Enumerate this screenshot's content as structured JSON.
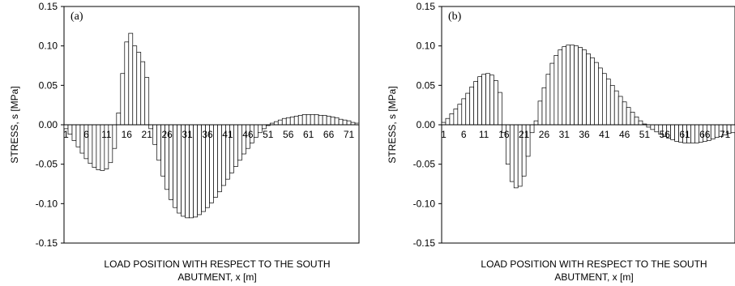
{
  "chart_data": [
    {
      "type": "bar",
      "panel_label": "(a)",
      "xlabel_line1": "LOAD POSITION WITH RESPECT TO THE SOUTH",
      "xlabel_line2": "ABUTMENT, x [m]",
      "ylabel": "STRESS, s [MPa]",
      "ylim": [
        -0.15,
        0.15
      ],
      "yticks": [
        "0.15",
        "0.10",
        "0.05",
        "0.00",
        "-0.05",
        "-0.10",
        "-0.15"
      ],
      "ytick_values": [
        0.15,
        0.1,
        0.05,
        0.0,
        -0.05,
        -0.1,
        -0.15
      ],
      "xtick_labels": [
        "1",
        "6",
        "11",
        "16",
        "21",
        "26",
        "31",
        "36",
        "41",
        "46",
        "51",
        "56",
        "61",
        "66",
        "71"
      ],
      "x": [
        1,
        2,
        3,
        4,
        5,
        6,
        7,
        8,
        9,
        10,
        11,
        12,
        13,
        14,
        15,
        16,
        17,
        18,
        19,
        20,
        21,
        22,
        23,
        24,
        25,
        26,
        27,
        28,
        29,
        30,
        31,
        32,
        33,
        34,
        35,
        36,
        37,
        38,
        39,
        40,
        41,
        42,
        43,
        44,
        45,
        46,
        47,
        48,
        49,
        50,
        51,
        52,
        53,
        54,
        55,
        56,
        57,
        58,
        59,
        60,
        61,
        62,
        63,
        64,
        65,
        66,
        67,
        68,
        69,
        70,
        71,
        72,
        73
      ],
      "values": [
        -0.005,
        -0.012,
        -0.02,
        -0.028,
        -0.036,
        -0.043,
        -0.049,
        -0.054,
        -0.057,
        -0.058,
        -0.056,
        -0.048,
        -0.03,
        0.015,
        0.065,
        0.105,
        0.116,
        0.1,
        0.092,
        0.08,
        0.06,
        -0.005,
        -0.025,
        -0.045,
        -0.065,
        -0.082,
        -0.095,
        -0.105,
        -0.112,
        -0.116,
        -0.118,
        -0.118,
        -0.117,
        -0.114,
        -0.11,
        -0.105,
        -0.099,
        -0.092,
        -0.085,
        -0.077,
        -0.069,
        -0.061,
        -0.053,
        -0.045,
        -0.037,
        -0.03,
        -0.023,
        -0.016,
        -0.01,
        -0.005,
        -0.001,
        0.002,
        0.004,
        0.006,
        0.008,
        0.009,
        0.01,
        0.011,
        0.012,
        0.013,
        0.013,
        0.013,
        0.013,
        0.012,
        0.012,
        0.011,
        0.01,
        0.009,
        0.007,
        0.006,
        0.005,
        0.003,
        0.002
      ],
      "grid": false,
      "legend": "none"
    },
    {
      "type": "bar",
      "panel_label": "(b)",
      "xlabel_line1": "LOAD POSITION WITH RESPECT TO THE SOUTH",
      "xlabel_line2": "ABUTMENT, x [m]",
      "ylabel": "STRESS, s [MPa]",
      "ylim": [
        -0.15,
        0.15
      ],
      "yticks": [
        "0.15",
        "0.10",
        "0.05",
        "0.00",
        "-0.05",
        "-0.10",
        "-0.15"
      ],
      "ytick_values": [
        0.15,
        0.1,
        0.05,
        0.0,
        -0.05,
        -0.1,
        -0.15
      ],
      "xtick_labels": [
        "1",
        "6",
        "11",
        "16",
        "21",
        "26",
        "31",
        "36",
        "41",
        "46",
        "51",
        "56",
        "61",
        "66",
        "71"
      ],
      "x": [
        1,
        2,
        3,
        4,
        5,
        6,
        7,
        8,
        9,
        10,
        11,
        12,
        13,
        14,
        15,
        16,
        17,
        18,
        19,
        20,
        21,
        22,
        23,
        24,
        25,
        26,
        27,
        28,
        29,
        30,
        31,
        32,
        33,
        34,
        35,
        36,
        37,
        38,
        39,
        40,
        41,
        42,
        43,
        44,
        45,
        46,
        47,
        48,
        49,
        50,
        51,
        52,
        53,
        54,
        55,
        56,
        57,
        58,
        59,
        60,
        61,
        62,
        63,
        64,
        65,
        66,
        67,
        68,
        69,
        70,
        71,
        72,
        73
      ],
      "values": [
        0.003,
        0.008,
        0.014,
        0.02,
        0.026,
        0.033,
        0.04,
        0.048,
        0.055,
        0.061,
        0.064,
        0.065,
        0.063,
        0.056,
        0.041,
        -0.01,
        -0.05,
        -0.072,
        -0.08,
        -0.078,
        -0.065,
        -0.04,
        -0.01,
        0.005,
        0.03,
        0.047,
        0.064,
        0.078,
        0.088,
        0.095,
        0.099,
        0.101,
        0.101,
        0.1,
        0.098,
        0.095,
        0.09,
        0.085,
        0.079,
        0.072,
        0.065,
        0.058,
        0.05,
        0.043,
        0.036,
        0.029,
        0.022,
        0.016,
        0.01,
        0.005,
        0.001,
        -0.003,
        -0.006,
        -0.009,
        -0.012,
        -0.015,
        -0.017,
        -0.019,
        -0.021,
        -0.022,
        -0.023,
        -0.023,
        -0.023,
        -0.023,
        -0.022,
        -0.021,
        -0.02,
        -0.018,
        -0.016,
        -0.015,
        -0.013,
        -0.011,
        -0.01
      ],
      "grid": false,
      "legend": "none"
    }
  ]
}
